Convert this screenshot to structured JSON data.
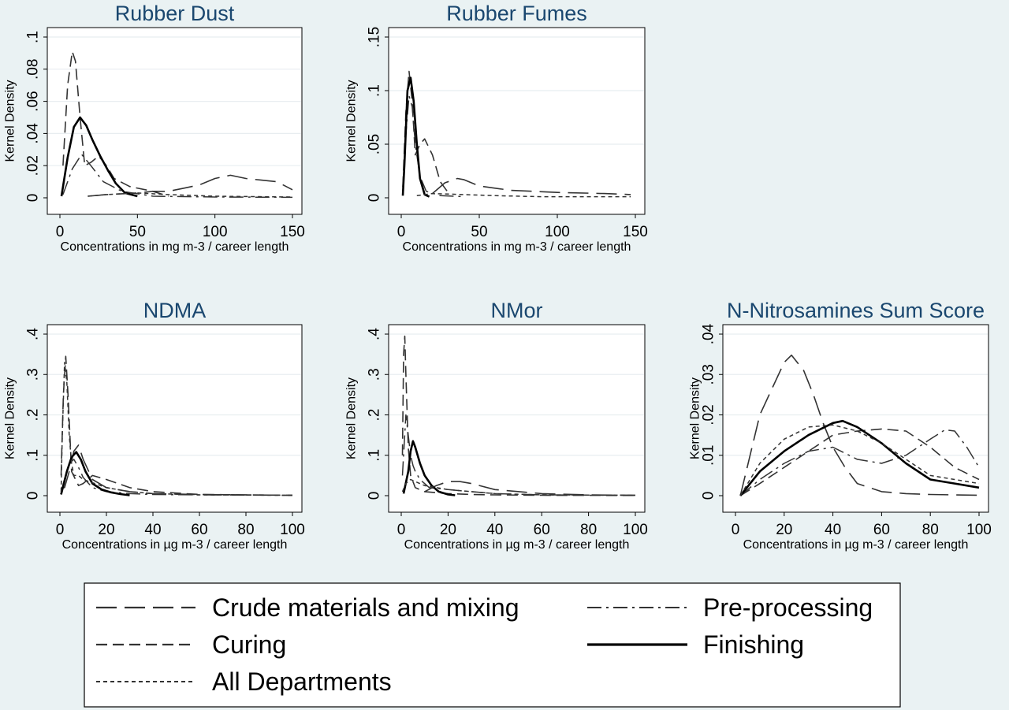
{
  "figure": {
    "background": "#eaf2f3",
    "plot_background": "#ffffff",
    "grid_color": "#e8edf0",
    "title_color": "#1a476f"
  },
  "legend": {
    "entries": [
      {
        "label": "Crude materials and mixing",
        "style": "longdash"
      },
      {
        "label": "Pre-processing",
        "style": "dashdot"
      },
      {
        "label": "Curing",
        "style": "dash"
      },
      {
        "label": "Finishing",
        "style": "solid"
      },
      {
        "label": "All Departments",
        "style": "shortdash"
      }
    ]
  },
  "chart_data": [
    {
      "type": "line",
      "title": "Rubber Dust",
      "xlabel": "Concentrations in mg m-3 / career length",
      "ylabel": "Kernel Density",
      "xlim": [
        0,
        150
      ],
      "ylim": [
        0,
        0.1
      ],
      "xticks": [
        0,
        50,
        100,
        150
      ],
      "xtick_labels": [
        "0",
        "50",
        "100",
        "150"
      ],
      "yticks": [
        0,
        0.02,
        0.04,
        0.06,
        0.08,
        0.1
      ],
      "ytick_labels": [
        "0",
        ".02",
        ".04",
        ".06",
        ".08",
        ".1"
      ],
      "grid": true,
      "series": [
        {
          "name": "Crude materials and mixing",
          "style": "longdash",
          "x": [
            18,
            30,
            50,
            60,
            70,
            80,
            90,
            100,
            110,
            120,
            130,
            140,
            150
          ],
          "y": [
            0.001,
            0.002,
            0.003,
            0.004,
            0.004,
            0.006,
            0.008,
            0.012,
            0.014,
            0.012,
            0.011,
            0.01,
            0.005
          ]
        },
        {
          "name": "Pre-processing",
          "style": "dashdot",
          "x": [
            2,
            8,
            14,
            20,
            28,
            40,
            60,
            100,
            150
          ],
          "y": [
            0.002,
            0.018,
            0.027,
            0.02,
            0.01,
            0.004,
            0.001,
            0.0005,
            0.0003
          ]
        },
        {
          "name": "Curing",
          "style": "dash",
          "x": [
            2,
            5,
            8,
            10,
            13,
            16,
            20,
            25,
            30,
            35,
            45,
            60,
            70
          ],
          "y": [
            0.02,
            0.07,
            0.091,
            0.085,
            0.05,
            0.02,
            0.022,
            0.026,
            0.02,
            0.012,
            0.007,
            0.004,
            0.001
          ]
        },
        {
          "name": "Finishing",
          "style": "solid",
          "x": [
            1,
            5,
            9,
            13,
            17,
            21,
            26,
            31,
            36,
            42,
            50
          ],
          "y": [
            0.001,
            0.025,
            0.044,
            0.05,
            0.045,
            0.036,
            0.026,
            0.017,
            0.009,
            0.003,
            0.001
          ]
        },
        {
          "name": "All Departments",
          "style": "shortdash",
          "x": [
            18,
            30,
            50,
            70,
            100,
            150
          ],
          "y": [
            0.001,
            0.002,
            0.003,
            0.002,
            0.001,
            0.0005
          ]
        }
      ]
    },
    {
      "type": "line",
      "title": "Rubber Fumes",
      "xlabel": "Concentrations in mg m-3 / career length",
      "ylabel": "Kernel Density",
      "xlim": [
        0,
        150
      ],
      "ylim": [
        0,
        0.15
      ],
      "xticks": [
        0,
        50,
        100,
        150
      ],
      "xtick_labels": [
        "0",
        "50",
        "100",
        "150"
      ],
      "yticks": [
        0,
        0.05,
        0.1,
        0.15
      ],
      "ytick_labels": [
        "0",
        ".05",
        ".1",
        ".15"
      ],
      "grid": true,
      "series": [
        {
          "name": "Crude materials and mixing",
          "style": "longdash",
          "x": [
            20,
            28,
            36,
            40,
            50,
            70,
            100,
            130,
            147
          ],
          "y": [
            0.004,
            0.014,
            0.018,
            0.017,
            0.011,
            0.007,
            0.005,
            0.004,
            0.003
          ]
        },
        {
          "name": "Pre-processing",
          "style": "dashdot",
          "x": [
            1,
            3,
            5,
            7,
            9,
            12,
            16,
            25,
            40
          ],
          "y": [
            0.005,
            0.06,
            0.095,
            0.085,
            0.05,
            0.02,
            0.006,
            0.002,
            0.001
          ]
        },
        {
          "name": "Curing",
          "style": "dash",
          "x": [
            1,
            3,
            5,
            7,
            9,
            12,
            15,
            20,
            25,
            30
          ],
          "y": [
            0.01,
            0.08,
            0.118,
            0.09,
            0.04,
            0.05,
            0.055,
            0.04,
            0.015,
            0.005
          ]
        },
        {
          "name": "Finishing",
          "style": "solid",
          "x": [
            1,
            2,
            4,
            6,
            8,
            10,
            12,
            15,
            18
          ],
          "y": [
            0.002,
            0.03,
            0.1,
            0.112,
            0.09,
            0.05,
            0.018,
            0.003,
            0.001
          ]
        },
        {
          "name": "All Departments",
          "style": "shortdash",
          "x": [
            10,
            20,
            40,
            60,
            90,
            147
          ],
          "y": [
            0.002,
            0.004,
            0.003,
            0.002,
            0.001,
            0.001
          ]
        }
      ]
    },
    {
      "type": "line",
      "title": "NDMA",
      "xlabel": "Concentrations in µg m-3 / career length",
      "ylabel": "Kernel Density",
      "xlim": [
        0,
        100
      ],
      "ylim": [
        0,
        0.4
      ],
      "xticks": [
        0,
        20,
        40,
        60,
        80,
        100
      ],
      "xtick_labels": [
        "0",
        "20",
        "40",
        "60",
        "80",
        "100"
      ],
      "yticks": [
        0,
        0.1,
        0.2,
        0.3,
        0.4
      ],
      "ytick_labels": [
        "0",
        ".1",
        ".2",
        ".3",
        ".4"
      ],
      "grid": true,
      "series": [
        {
          "name": "Crude materials and mixing",
          "style": "longdash",
          "x": [
            0.5,
            2,
            4,
            6,
            8,
            10,
            14,
            20,
            30,
            40,
            60,
            80,
            100
          ],
          "y": [
            0.02,
            0.02,
            0.06,
            0.11,
            0.125,
            0.09,
            0.04,
            0.02,
            0.01,
            0.005,
            0.003,
            0.002,
            0.001
          ]
        },
        {
          "name": "Pre-processing",
          "style": "dashdot",
          "x": [
            0.5,
            2,
            4,
            6,
            8,
            10,
            14,
            20,
            30,
            40,
            60,
            100
          ],
          "y": [
            0.01,
            0.04,
            0.08,
            0.09,
            0.07,
            0.045,
            0.02,
            0.01,
            0.005,
            0.003,
            0.002,
            0.001
          ]
        },
        {
          "name": "Curing",
          "style": "dash",
          "x": [
            0.5,
            1.5,
            2.5,
            3.5,
            5,
            8,
            10,
            14,
            20,
            25,
            30,
            40,
            60,
            80,
            100
          ],
          "y": [
            0.05,
            0.25,
            0.345,
            0.25,
            0.06,
            0.025,
            0.03,
            0.05,
            0.04,
            0.03,
            0.02,
            0.01,
            0.003,
            0.002,
            0.001
          ]
        },
        {
          "name": "Finishing",
          "style": "solid",
          "x": [
            0.5,
            3,
            5,
            7,
            9,
            11,
            14,
            18,
            22,
            26,
            30
          ],
          "y": [
            0.003,
            0.06,
            0.095,
            0.108,
            0.09,
            0.06,
            0.03,
            0.015,
            0.008,
            0.004,
            0.001
          ]
        },
        {
          "name": "All Departments",
          "style": "shortdash",
          "x": [
            0.5,
            1,
            2,
            3,
            4,
            5,
            6,
            8,
            10,
            15,
            20,
            30,
            40,
            60,
            100
          ],
          "y": [
            0.01,
            0.15,
            0.33,
            0.28,
            0.15,
            0.08,
            0.05,
            0.05,
            0.04,
            0.03,
            0.02,
            0.01,
            0.005,
            0.002,
            0.001
          ]
        }
      ]
    },
    {
      "type": "line",
      "title": "NMor",
      "xlabel": "Concentrations in µg m-3 / career length",
      "ylabel": "Kernel Density",
      "xlim": [
        0,
        100
      ],
      "ylim": [
        0,
        0.4
      ],
      "xticks": [
        0,
        20,
        40,
        60,
        80,
        100
      ],
      "xtick_labels": [
        "0",
        "20",
        "40",
        "60",
        "80",
        "100"
      ],
      "yticks": [
        0,
        0.1,
        0.2,
        0.3,
        0.4
      ],
      "ytick_labels": [
        "0",
        ".1",
        ".2",
        ".3",
        ".4"
      ],
      "grid": true,
      "series": [
        {
          "name": "Crude materials and mixing",
          "style": "longdash",
          "x": [
            10,
            15,
            20,
            25,
            30,
            40,
            60,
            80,
            100
          ],
          "y": [
            0.01,
            0.025,
            0.035,
            0.035,
            0.03,
            0.015,
            0.005,
            0.002,
            0.001
          ]
        },
        {
          "name": "Pre-processing",
          "style": "dashdot",
          "x": [
            0.5,
            2,
            3,
            4,
            5,
            6,
            8,
            12,
            20,
            30,
            40,
            60,
            100
          ],
          "y": [
            0.05,
            0.2,
            0.15,
            0.1,
            0.075,
            0.06,
            0.04,
            0.02,
            0.015,
            0.01,
            0.005,
            0.002,
            0.001
          ]
        },
        {
          "name": "Curing",
          "style": "dash",
          "x": [
            0.5,
            1,
            1.5,
            2,
            3,
            4,
            6,
            10,
            20,
            30,
            40,
            60,
            100
          ],
          "y": [
            0.1,
            0.35,
            0.395,
            0.3,
            0.12,
            0.05,
            0.02,
            0.01,
            0.005,
            0.003,
            0.002,
            0.001,
            0.0005
          ]
        },
        {
          "name": "Finishing",
          "style": "solid",
          "x": [
            1,
            3,
            4,
            5,
            6,
            8,
            10,
            13,
            16,
            20,
            23
          ],
          "y": [
            0.005,
            0.06,
            0.11,
            0.135,
            0.12,
            0.08,
            0.05,
            0.025,
            0.01,
            0.003,
            0.001
          ]
        },
        {
          "name": "All Departments",
          "style": "shortdash",
          "x": [
            0.5,
            2,
            4,
            6,
            10,
            20,
            30,
            40,
            60,
            100
          ],
          "y": [
            0.01,
            0.03,
            0.04,
            0.035,
            0.025,
            0.015,
            0.01,
            0.005,
            0.002,
            0.001
          ]
        }
      ]
    },
    {
      "type": "line",
      "title": "N-Nitrosamines Sum Score",
      "xlabel": "Concentrations in µg m-3 / career length",
      "ylabel": "Kernel Density",
      "xlim": [
        0,
        100
      ],
      "ylim": [
        0,
        0.04
      ],
      "xticks": [
        0,
        20,
        40,
        60,
        80,
        100
      ],
      "xtick_labels": [
        "0",
        "20",
        "40",
        "60",
        "80",
        "100"
      ],
      "yticks": [
        0,
        0.01,
        0.02,
        0.03,
        0.04
      ],
      "ytick_labels": [
        "0",
        ".01",
        ".02",
        ".03",
        ".04"
      ],
      "grid": true,
      "series": [
        {
          "name": "Crude materials and mixing",
          "style": "longdash",
          "x": [
            2,
            10,
            20,
            23,
            28,
            32,
            36,
            40,
            45,
            50,
            60,
            70,
            80,
            90,
            100
          ],
          "y": [
            0.0,
            0.02,
            0.033,
            0.0348,
            0.031,
            0.025,
            0.018,
            0.012,
            0.007,
            0.003,
            0.001,
            0.0005,
            0.0003,
            0.0002,
            0.0001
          ]
        },
        {
          "name": "Pre-processing",
          "style": "dashdot",
          "x": [
            2,
            10,
            20,
            30,
            40,
            50,
            60,
            70,
            80,
            86,
            90,
            95,
            100
          ],
          "y": [
            0.0,
            0.004,
            0.008,
            0.011,
            0.012,
            0.009,
            0.008,
            0.01,
            0.014,
            0.0163,
            0.016,
            0.012,
            0.007
          ]
        },
        {
          "name": "Curing",
          "style": "dash",
          "x": [
            2,
            10,
            20,
            30,
            40,
            50,
            60,
            70,
            80,
            90,
            100
          ],
          "y": [
            0.0,
            0.003,
            0.007,
            0.011,
            0.015,
            0.016,
            0.0165,
            0.016,
            0.012,
            0.007,
            0.004
          ]
        },
        {
          "name": "Finishing",
          "style": "solid",
          "x": [
            2,
            10,
            20,
            30,
            40,
            44,
            50,
            60,
            70,
            80,
            90,
            100
          ],
          "y": [
            0.0,
            0.006,
            0.011,
            0.015,
            0.018,
            0.0185,
            0.017,
            0.013,
            0.008,
            0.004,
            0.003,
            0.002
          ]
        },
        {
          "name": "All Departments",
          "style": "shortdash",
          "x": [
            2,
            10,
            20,
            30,
            40,
            50,
            60,
            70,
            80,
            90,
            100
          ],
          "y": [
            0.0,
            0.008,
            0.014,
            0.017,
            0.0175,
            0.016,
            0.013,
            0.009,
            0.005,
            0.004,
            0.003
          ]
        }
      ]
    }
  ]
}
